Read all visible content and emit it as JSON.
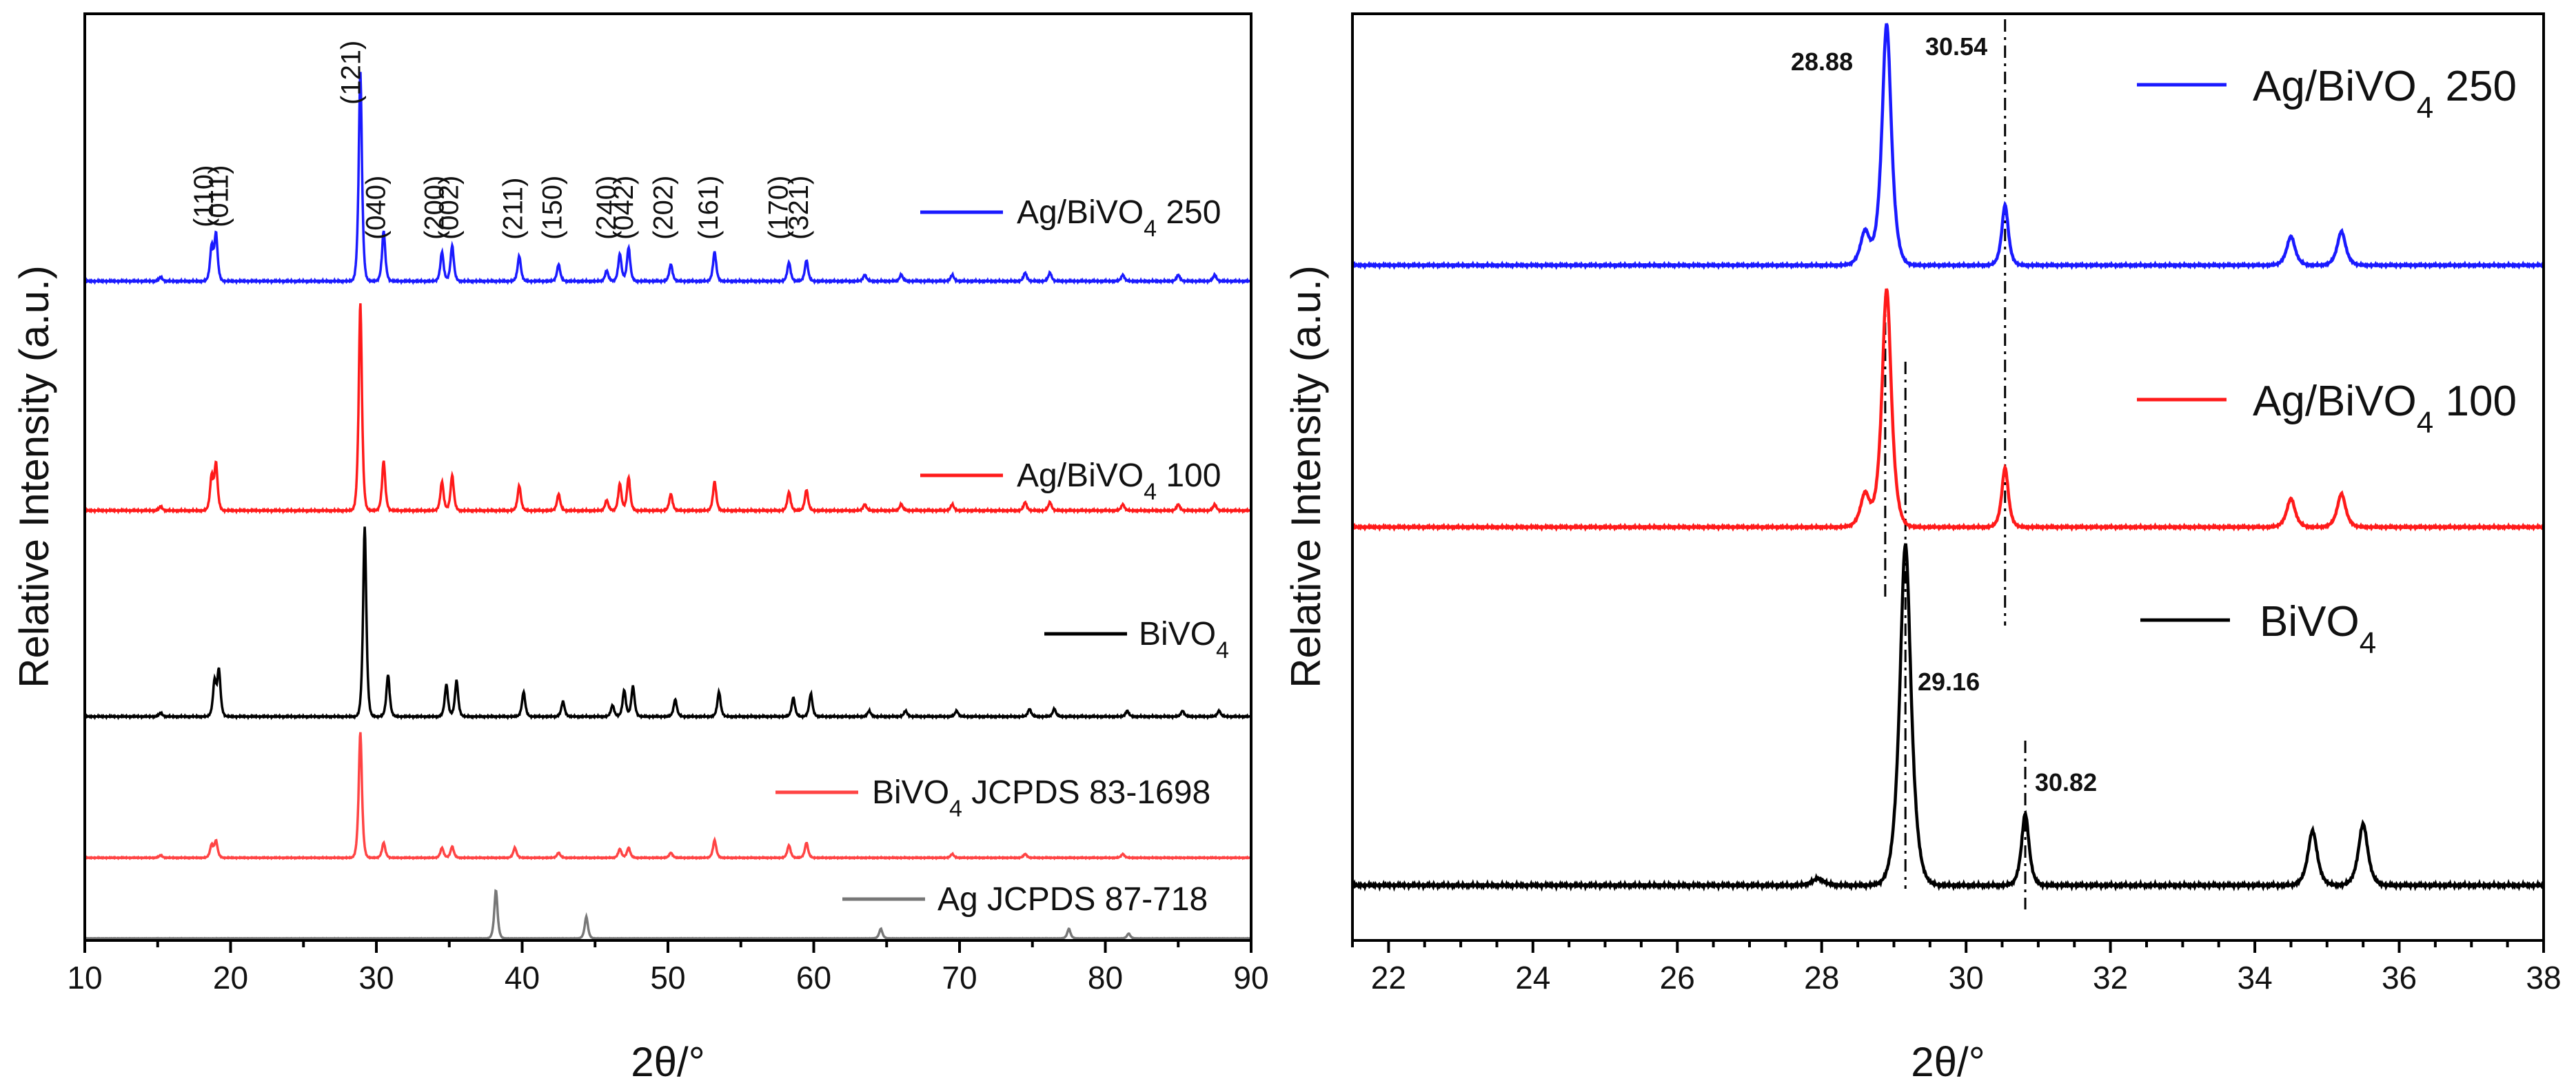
{
  "chart_data": [
    {
      "type": "line",
      "title": "",
      "xlabel": "2θ/°",
      "ylabel": "Relative Intensity (a.u.)",
      "xlim": [
        10,
        90
      ],
      "xticks": [
        10,
        20,
        30,
        40,
        50,
        60,
        70,
        80,
        90
      ],
      "yticks_shown": false,
      "series": [
        {
          "name": "Ag/BiVO4 250",
          "legend_main": "Ag/BiVO",
          "legend_sub": "4",
          "legend_tail": " 250",
          "color": "#1a1aff",
          "peaks": [
            [
              15.2,
              0.02
            ],
            [
              18.7,
              0.16
            ],
            [
              19.0,
              0.22
            ],
            [
              28.9,
              1.0
            ],
            [
              30.5,
              0.24
            ],
            [
              34.5,
              0.14
            ],
            [
              35.2,
              0.17
            ],
            [
              39.8,
              0.12
            ],
            [
              42.5,
              0.08
            ],
            [
              45.8,
              0.05
            ],
            [
              46.7,
              0.13
            ],
            [
              47.3,
              0.16
            ],
            [
              50.2,
              0.08
            ],
            [
              53.2,
              0.14
            ],
            [
              58.3,
              0.09
            ],
            [
              59.5,
              0.1
            ],
            [
              63.5,
              0.03
            ],
            [
              66.0,
              0.03
            ],
            [
              69.5,
              0.03
            ],
            [
              74.5,
              0.04
            ],
            [
              76.2,
              0.04
            ],
            [
              81.2,
              0.03
            ],
            [
              85.0,
              0.03
            ],
            [
              87.5,
              0.03
            ]
          ]
        },
        {
          "name": "Ag/BiVO4 100",
          "legend_main": "Ag/BiVO",
          "legend_sub": "4",
          "legend_tail": " 100",
          "color": "#ff1a1a",
          "peaks": [
            [
              15.2,
              0.02
            ],
            [
              18.7,
              0.16
            ],
            [
              19.0,
              0.22
            ],
            [
              28.9,
              1.0
            ],
            [
              30.5,
              0.24
            ],
            [
              34.5,
              0.14
            ],
            [
              35.2,
              0.17
            ],
            [
              39.8,
              0.12
            ],
            [
              42.5,
              0.08
            ],
            [
              45.8,
              0.05
            ],
            [
              46.7,
              0.13
            ],
            [
              47.3,
              0.16
            ],
            [
              50.2,
              0.08
            ],
            [
              53.2,
              0.14
            ],
            [
              58.3,
              0.09
            ],
            [
              59.5,
              0.1
            ],
            [
              63.5,
              0.03
            ],
            [
              66.0,
              0.03
            ],
            [
              69.5,
              0.03
            ],
            [
              74.5,
              0.04
            ],
            [
              76.2,
              0.04
            ],
            [
              81.2,
              0.03
            ],
            [
              85.0,
              0.03
            ],
            [
              87.5,
              0.03
            ]
          ]
        },
        {
          "name": "BiVO4",
          "legend_main": "BiVO",
          "legend_sub": "4",
          "legend_tail": "",
          "color": "#000000",
          "peaks": [
            [
              15.2,
              0.02
            ],
            [
              18.9,
              0.18
            ],
            [
              19.2,
              0.24
            ],
            [
              29.2,
              1.0
            ],
            [
              30.8,
              0.22
            ],
            [
              34.8,
              0.17
            ],
            [
              35.5,
              0.19
            ],
            [
              40.1,
              0.13
            ],
            [
              42.8,
              0.08
            ],
            [
              46.2,
              0.06
            ],
            [
              47.0,
              0.14
            ],
            [
              47.6,
              0.16
            ],
            [
              50.5,
              0.09
            ],
            [
              53.5,
              0.13
            ],
            [
              58.6,
              0.1
            ],
            [
              59.8,
              0.12
            ],
            [
              63.8,
              0.03
            ],
            [
              66.3,
              0.03
            ],
            [
              69.8,
              0.03
            ],
            [
              74.8,
              0.04
            ],
            [
              76.5,
              0.04
            ],
            [
              81.5,
              0.03
            ],
            [
              85.3,
              0.03
            ],
            [
              87.8,
              0.03
            ]
          ]
        },
        {
          "name": "BiVO4 JCPDS 83-1698",
          "legend_main": "BiVO",
          "legend_sub": "4",
          "legend_tail": " JCPDS 83-1698",
          "color": "#ff4444",
          "peaks": [
            [
              15.2,
              0.02
            ],
            [
              18.7,
              0.1
            ],
            [
              19.0,
              0.13
            ],
            [
              28.9,
              1.0
            ],
            [
              30.5,
              0.12
            ],
            [
              34.5,
              0.08
            ],
            [
              35.2,
              0.09
            ],
            [
              39.5,
              0.08
            ],
            [
              42.5,
              0.04
            ],
            [
              46.7,
              0.07
            ],
            [
              47.3,
              0.08
            ],
            [
              50.2,
              0.04
            ],
            [
              53.2,
              0.14
            ],
            [
              58.3,
              0.1
            ],
            [
              59.5,
              0.12
            ],
            [
              69.5,
              0.03
            ],
            [
              74.5,
              0.03
            ],
            [
              81.2,
              0.03
            ]
          ]
        },
        {
          "name": "Ag JCPDS 87-718",
          "legend_main": "Ag JCPDS 87-718",
          "legend_sub": "",
          "legend_tail": "",
          "color": "#777777",
          "peaks": [
            [
              38.2,
              1.0
            ],
            [
              44.4,
              0.45
            ],
            [
              64.6,
              0.2
            ],
            [
              77.5,
              0.2
            ],
            [
              81.6,
              0.1
            ]
          ]
        }
      ],
      "hkl_labels": [
        {
          "text": "(110)",
          "x": 18.8
        },
        {
          "text": "(011)",
          "x": 19.8
        },
        {
          "text": "(121)",
          "x": 28.9
        },
        {
          "text": "(040)",
          "x": 30.6
        },
        {
          "text": "(200)",
          "x": 34.6
        },
        {
          "text": "(002)",
          "x": 35.6
        },
        {
          "text": "(211)",
          "x": 40.0
        },
        {
          "text": "(150)",
          "x": 42.7
        },
        {
          "text": "(240)",
          "x": 46.4
        },
        {
          "text": "(042)",
          "x": 47.6
        },
        {
          "text": "(202)",
          "x": 50.3
        },
        {
          "text": "(161)",
          "x": 53.4
        },
        {
          "text": "(170)",
          "x": 58.2
        },
        {
          "text": "(321)",
          "x": 59.6
        }
      ]
    },
    {
      "type": "line",
      "title": "",
      "xlabel": "2θ/°",
      "ylabel": "Relative Intensity (a.u.)",
      "xlim": [
        21.5,
        38
      ],
      "xticks": [
        22,
        24,
        26,
        28,
        30,
        32,
        34,
        36,
        38
      ],
      "yticks_shown": false,
      "series": [
        {
          "name": "Ag/BiVO4 250",
          "legend_main": "Ag/BiVO",
          "legend_sub": "4",
          "legend_tail": " 250",
          "color": "#1a1aff",
          "peaks": [
            [
              28.6,
              0.14,
              0.1
            ],
            [
              28.9,
              1.0,
              0.1
            ],
            [
              30.54,
              0.25,
              0.07
            ],
            [
              34.5,
              0.12,
              0.09
            ],
            [
              35.2,
              0.14,
              0.09
            ]
          ]
        },
        {
          "name": "Ag/BiVO4 100",
          "legend_main": "Ag/BiVO",
          "legend_sub": "4",
          "legend_tail": " 100",
          "color": "#ff1a1a",
          "peaks": [
            [
              28.6,
              0.14,
              0.1
            ],
            [
              28.9,
              1.0,
              0.1
            ],
            [
              30.54,
              0.25,
              0.07
            ],
            [
              34.5,
              0.12,
              0.09
            ],
            [
              35.2,
              0.14,
              0.09
            ]
          ]
        },
        {
          "name": "BiVO4",
          "legend_main": "BiVO",
          "legend_sub": "4",
          "legend_tail": "",
          "color": "#000000",
          "peaks": [
            [
              27.95,
              0.02,
              0.12
            ],
            [
              29.16,
              1.0,
              0.12
            ],
            [
              30.82,
              0.21,
              0.08
            ],
            [
              34.8,
              0.16,
              0.1
            ],
            [
              35.5,
              0.18,
              0.1
            ]
          ]
        }
      ],
      "annotations": [
        {
          "text": "28.88",
          "x": 28.88
        },
        {
          "text": "30.54",
          "x": 30.54
        },
        {
          "text": "29.16",
          "x": 29.16
        },
        {
          "text": "30.82",
          "x": 30.82
        }
      ]
    }
  ]
}
